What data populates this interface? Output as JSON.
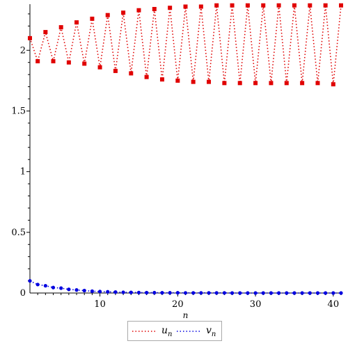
{
  "chart_data": {
    "type": "line",
    "xlabel": "n",
    "ylabel": "",
    "title": "",
    "xlim": [
      1,
      41
    ],
    "ylim": [
      0,
      2.38
    ],
    "x_ticks": [
      "10",
      "20",
      "30",
      "40"
    ],
    "y_ticks": [
      "0",
      "0.5",
      "1",
      "1.5",
      "2"
    ],
    "grid": false,
    "legend_position": "bottom-center",
    "series": [
      {
        "name": "u_n",
        "label_main": "u",
        "label_sub": "n",
        "color": "#e00000",
        "marker": "square",
        "line_style": "dotted",
        "x": [
          1,
          2,
          3,
          4,
          5,
          6,
          7,
          8,
          9,
          10,
          11,
          12,
          13,
          14,
          15,
          16,
          17,
          18,
          19,
          20,
          21,
          22,
          23,
          24,
          25,
          26,
          27,
          28,
          29,
          30,
          31,
          32,
          33,
          34,
          35,
          36,
          37,
          38,
          39,
          40,
          41
        ],
        "values": [
          2.1,
          1.91,
          2.15,
          1.91,
          2.19,
          1.9,
          2.23,
          1.89,
          2.26,
          1.86,
          2.29,
          1.83,
          2.31,
          1.81,
          2.33,
          1.78,
          2.34,
          1.76,
          2.35,
          1.75,
          2.36,
          1.74,
          2.36,
          1.74,
          2.37,
          1.73,
          2.37,
          1.73,
          2.37,
          1.73,
          2.37,
          1.73,
          2.37,
          1.73,
          2.37,
          1.73,
          2.37,
          1.73,
          2.37,
          1.72,
          2.37
        ]
      },
      {
        "name": "v_n",
        "label_main": "v",
        "label_sub": "n",
        "color": "#0000e0",
        "marker": "circle",
        "line_style": "dotted",
        "x": [
          1,
          2,
          3,
          4,
          5,
          6,
          7,
          8,
          9,
          10,
          11,
          12,
          13,
          14,
          15,
          16,
          17,
          18,
          19,
          20,
          21,
          22,
          23,
          24,
          25,
          26,
          27,
          28,
          29,
          30,
          31,
          32,
          33,
          34,
          35,
          36,
          37,
          38,
          39,
          40,
          41
        ],
        "values": [
          0.1,
          0.07,
          0.06,
          0.045,
          0.04,
          0.03,
          0.025,
          0.02,
          0.015,
          0.012,
          0.01,
          0.008,
          0.006,
          0.005,
          0.004,
          0.003,
          0.003,
          0.002,
          0.002,
          0.002,
          0.001,
          0.001,
          0.001,
          0.001,
          0.001,
          0.001,
          0.0,
          0.0,
          0.0,
          0.0,
          0.0,
          0.0,
          0.0,
          0.0,
          0.0,
          0.0,
          0.0,
          0.0,
          0.0,
          0.0,
          0.0
        ]
      }
    ]
  }
}
